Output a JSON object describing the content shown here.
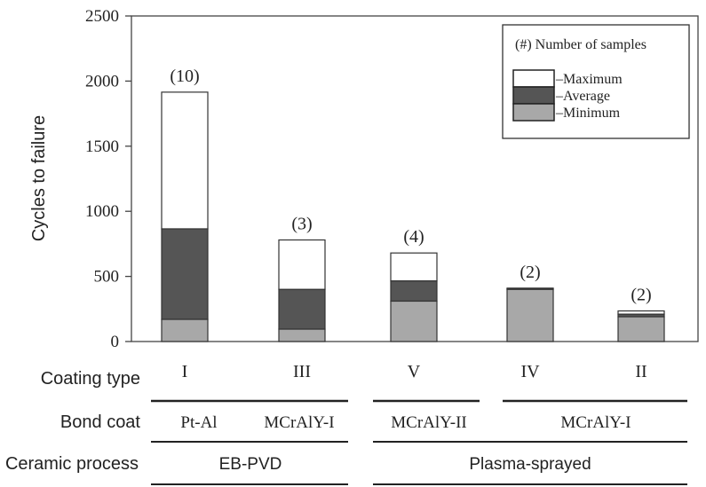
{
  "chart_data": {
    "type": "bar",
    "stacked": true,
    "ylabel": "Cycles to failure",
    "ylim": [
      0,
      2500
    ],
    "yticks": [
      "0",
      "500",
      "1000",
      "1500",
      "2000",
      "2500"
    ],
    "ytick_values": [
      0,
      500,
      1000,
      1500,
      2000,
      2500
    ],
    "grid": false,
    "categories": [
      "I",
      "III",
      "V",
      "IV",
      "II"
    ],
    "sample_counts": [
      "(10)",
      "(3)",
      "(4)",
      "(2)",
      "(2)"
    ],
    "minimum": [
      170,
      95,
      310,
      400,
      190
    ],
    "average": [
      865,
      400,
      465,
      405,
      210
    ],
    "maximum": [
      1915,
      780,
      680,
      410,
      235
    ],
    "colors": {
      "minimum": "#a8a8a8",
      "average": "#555555",
      "maximum": "#ffffff",
      "edge": "#333333"
    },
    "legend": {
      "placement": "top-right",
      "title": "(#) Number of samples",
      "entries": [
        "–Maximum",
        "–Average",
        "–Minimum"
      ]
    }
  },
  "row_labels": {
    "coating_type": "Coating type",
    "bond_coat": "Bond coat",
    "ceramic_process": "Ceramic process"
  },
  "bond_coat_groups": [
    "Pt-Al",
    "MCrAlY-I",
    "MCrAlY-II",
    "MCrAlY-I"
  ],
  "ceramic_process_groups": [
    "EB-PVD",
    "Plasma-sprayed"
  ]
}
